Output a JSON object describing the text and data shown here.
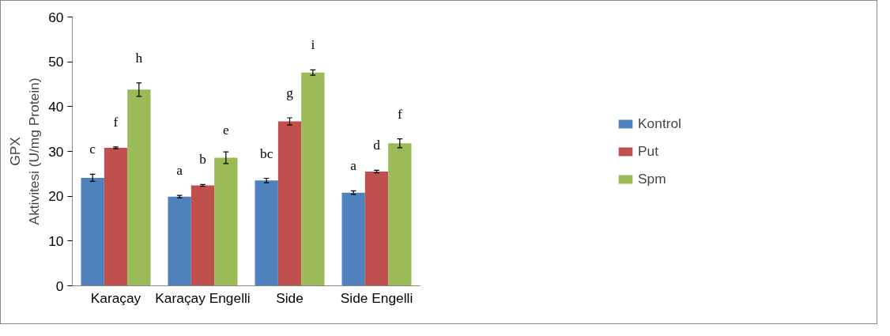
{
  "chart_data": {
    "type": "bar",
    "ylabel": "GPX\nAktivitesi (U/mg Protein)",
    "categories": [
      "Karaçay",
      "Karaçay Engelli",
      "Side",
      "Side Engelli"
    ],
    "ylim": [
      0,
      60
    ],
    "yticks": [
      0,
      10,
      20,
      30,
      40,
      50,
      60
    ],
    "grid": false,
    "legend": "right",
    "series": [
      {
        "name": "Kontrol",
        "color": "#4f81bd",
        "values": [
          24.1,
          19.9,
          23.5,
          20.8
        ],
        "errors": [
          0.8,
          0.3,
          0.5,
          0.4
        ],
        "value_labels": [
          "c",
          "a",
          "bc",
          "a"
        ]
      },
      {
        "name": "Put",
        "color": "#c0504d",
        "values": [
          30.8,
          22.4,
          36.7,
          25.5
        ],
        "errors": [
          0.2,
          0.2,
          0.8,
          0.3
        ],
        "value_labels": [
          "f",
          "b",
          "g",
          "d"
        ]
      },
      {
        "name": "Spm",
        "color": "#9bbb59",
        "values": [
          43.8,
          28.6,
          47.6,
          31.8
        ],
        "errors": [
          1.5,
          1.3,
          0.6,
          1.0
        ],
        "value_labels": [
          "h",
          "e",
          "i",
          "f"
        ]
      }
    ]
  }
}
